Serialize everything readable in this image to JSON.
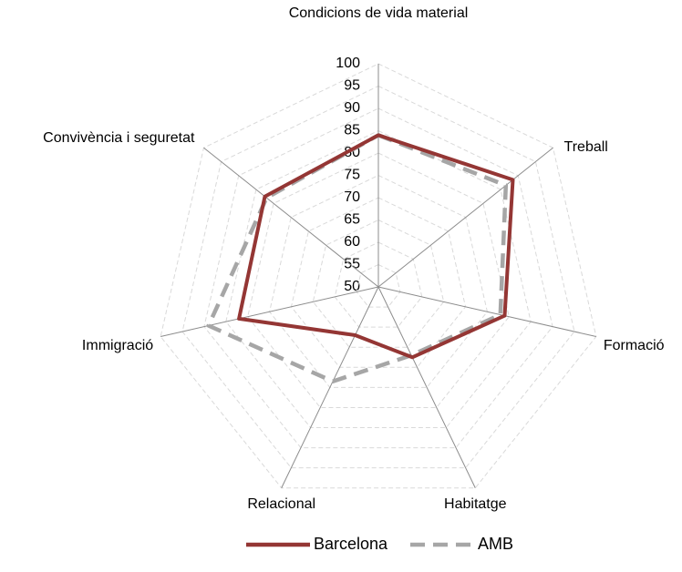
{
  "chart_data": {
    "type": "radar",
    "categories": [
      "Condicions de vida material",
      "Treball",
      "Formació",
      "Habitatge",
      "Relacional",
      "Immigració",
      "Convivència i seguretat"
    ],
    "series": [
      {
        "name": "Barcelona",
        "color": "#943634",
        "values": [
          84,
          88.5,
          79,
          67.5,
          62,
          82,
          82.5
        ]
      },
      {
        "name": "AMB",
        "color": "#a6a6a6",
        "values": [
          84,
          86.5,
          78,
          67,
          73.5,
          89,
          82
        ]
      }
    ],
    "rlim": [
      50,
      100
    ],
    "rticks": [
      50,
      55,
      60,
      65,
      70,
      75,
      80,
      85,
      90,
      95,
      100
    ],
    "grid": true,
    "legend": "bottom"
  }
}
